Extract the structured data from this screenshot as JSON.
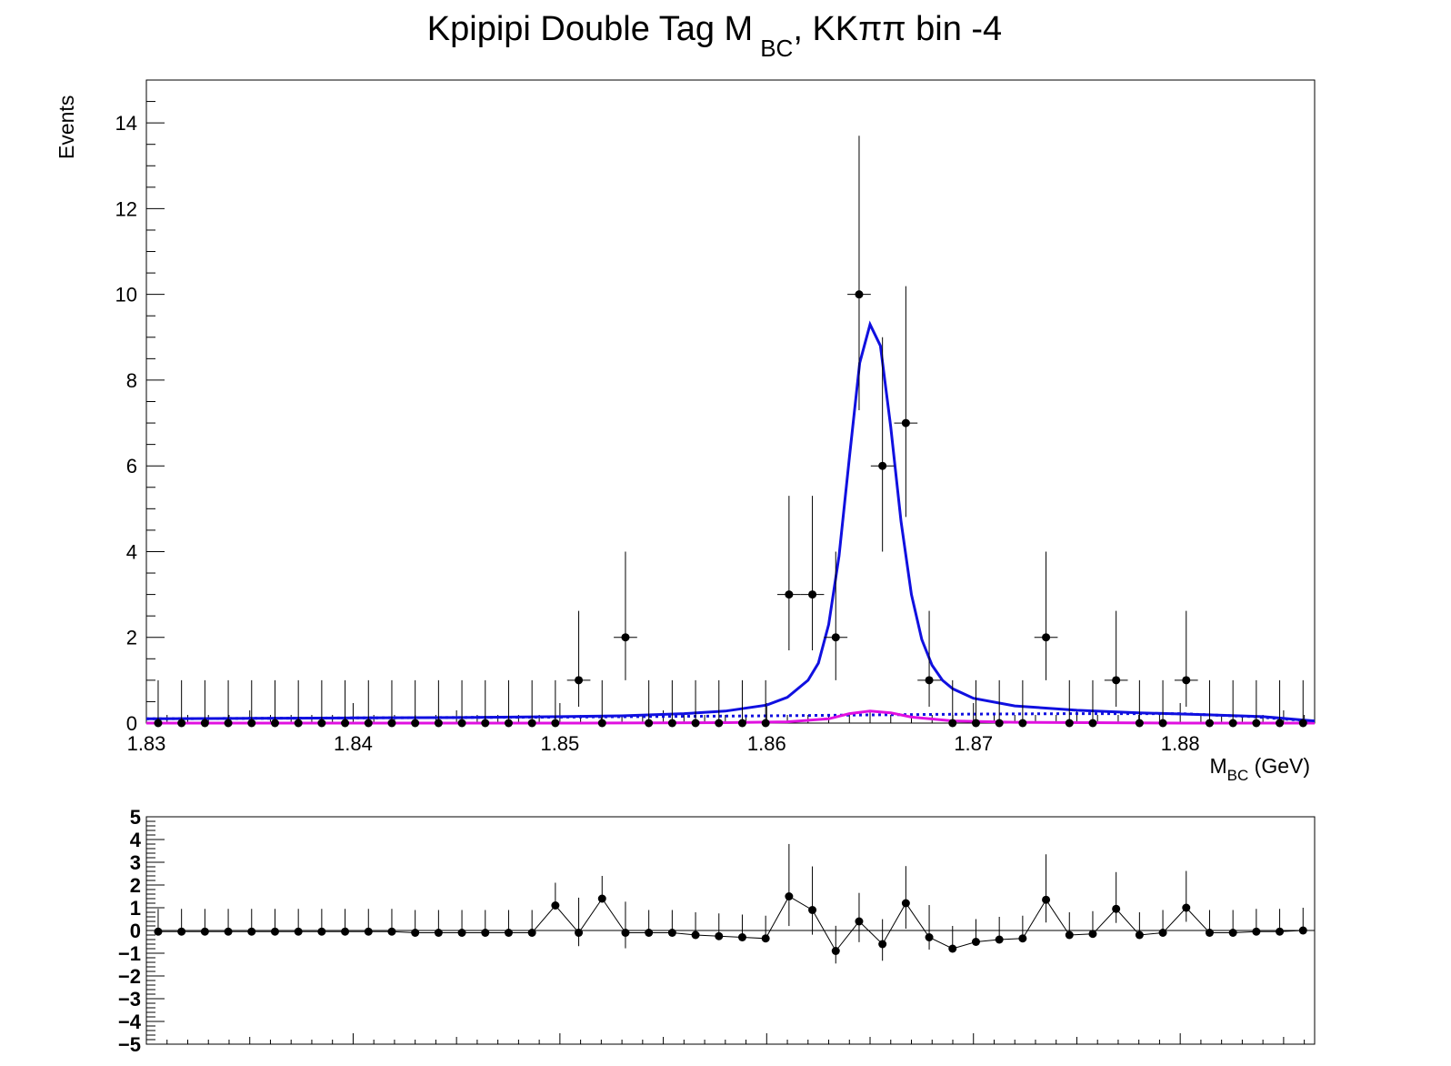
{
  "chart_data": {
    "type": "scatter",
    "title": {
      "main": "Kpipipi Double Tag M",
      "sub": "BC",
      "suffix": ", KKππ bin -4"
    },
    "xlabel": {
      "main": "M",
      "sub": "BC",
      "unit": " (GeV)"
    },
    "ylabel": "Events",
    "xlim": [
      1.83,
      1.8865
    ],
    "ylim": [
      0,
      15
    ],
    "x_ticks": [
      "1.83",
      "1.84",
      "1.85",
      "1.86",
      "1.87",
      "1.88"
    ],
    "y_ticks": [
      "0",
      "2",
      "4",
      "6",
      "8",
      "10",
      "12",
      "14"
    ],
    "colors": {
      "total_fit": "#1010e0",
      "signal": "#e010e0",
      "background": "#1010e0",
      "points": "#000000"
    },
    "bin_width": 0.00113,
    "bin_centers": [
      1.83057,
      1.8317,
      1.83283,
      1.83396,
      1.83509,
      1.83622,
      1.83735,
      1.83848,
      1.83961,
      1.84074,
      1.84187,
      1.843,
      1.84413,
      1.84526,
      1.84639,
      1.84752,
      1.84865,
      1.84978,
      1.85091,
      1.85204,
      1.85317,
      1.8543,
      1.85543,
      1.85656,
      1.85769,
      1.85882,
      1.85995,
      1.86108,
      1.86221,
      1.86334,
      1.86447,
      1.8656,
      1.86673,
      1.86786,
      1.86899,
      1.87012,
      1.87125,
      1.87238,
      1.87351,
      1.87464,
      1.87577,
      1.8769,
      1.87803,
      1.87916,
      1.88029,
      1.88142,
      1.88255,
      1.88368,
      1.88481,
      1.88594
    ],
    "counts": [
      0,
      0,
      0,
      0,
      0,
      0,
      0,
      0,
      0,
      0,
      0,
      0,
      0,
      0,
      0,
      0,
      0,
      0,
      1,
      0,
      2,
      0,
      0,
      0,
      0,
      0,
      0,
      3,
      3,
      2,
      10,
      6,
      7,
      1,
      0,
      0,
      0,
      0,
      2,
      0,
      0,
      1,
      0,
      0,
      1,
      0,
      0,
      0,
      0,
      0
    ],
    "total_fit": {
      "x": [
        1.83,
        1.835,
        1.84,
        1.845,
        1.85,
        1.853,
        1.856,
        1.858,
        1.86,
        1.861,
        1.862,
        1.8625,
        1.863,
        1.8635,
        1.864,
        1.8645,
        1.865,
        1.8655,
        1.866,
        1.8665,
        1.867,
        1.8675,
        1.868,
        1.8685,
        1.869,
        1.87,
        1.872,
        1.875,
        1.878,
        1.881,
        1.884,
        1.886,
        1.8865
      ],
      "y": [
        0.1,
        0.11,
        0.12,
        0.13,
        0.15,
        0.17,
        0.22,
        0.28,
        0.42,
        0.6,
        1.0,
        1.4,
        2.3,
        3.9,
        6.2,
        8.4,
        9.3,
        8.8,
        6.9,
        4.7,
        3.0,
        1.95,
        1.35,
        1.0,
        0.8,
        0.58,
        0.4,
        0.3,
        0.24,
        0.2,
        0.15,
        0.07,
        0.05
      ]
    },
    "signal": {
      "x": [
        1.83,
        1.85,
        1.858,
        1.861,
        1.863,
        1.864,
        1.865,
        1.866,
        1.867,
        1.869,
        1.872,
        1.88,
        1.8865
      ],
      "y": [
        0.0,
        0.0,
        0.01,
        0.03,
        0.1,
        0.22,
        0.28,
        0.24,
        0.14,
        0.05,
        0.02,
        0.0,
        0.0
      ]
    },
    "background": {
      "x": [
        1.83,
        1.84,
        1.85,
        1.86,
        1.865,
        1.87,
        1.875,
        1.88,
        1.8835,
        1.886,
        1.8865
      ],
      "y": [
        0.1,
        0.12,
        0.14,
        0.17,
        0.19,
        0.21,
        0.22,
        0.22,
        0.15,
        0.06,
        0.04
      ]
    },
    "residuals": {
      "ylim": [
        -5,
        5
      ],
      "y_ticks": [
        "5",
        "4",
        "3",
        "2",
        "1",
        "0",
        "−1",
        "−2",
        "−3",
        "−4",
        "−5"
      ],
      "values": [
        -0.05,
        -0.05,
        -0.05,
        -0.05,
        -0.05,
        -0.05,
        -0.05,
        -0.05,
        -0.05,
        -0.05,
        -0.05,
        -0.1,
        -0.1,
        -0.1,
        -0.1,
        -0.1,
        -0.1,
        1.1,
        -0.1,
        1.4,
        -0.1,
        -0.1,
        -0.1,
        -0.2,
        -0.25,
        -0.3,
        -0.35,
        1.5,
        0.9,
        -0.9,
        0.4,
        -0.6,
        1.2,
        -0.3,
        -0.8,
        -0.5,
        -0.4,
        -0.35,
        1.35,
        -0.2,
        -0.15,
        0.95,
        -0.2,
        -0.1,
        1.0,
        -0.1,
        -0.1,
        -0.05,
        -0.05,
        0.0
      ]
    }
  }
}
